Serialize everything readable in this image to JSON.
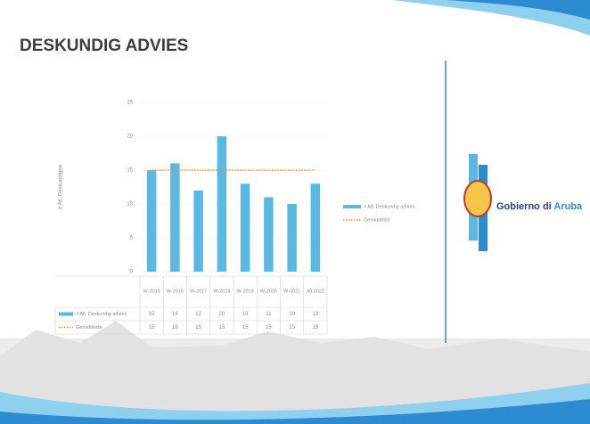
{
  "chart_data": {
    "type": "bar",
    "title": "DESKUNDIG ADVIES",
    "y_label": "# Afl. Deskundigen",
    "categories": [
      "W-2015",
      "W-2016",
      "W-2017",
      "W-2018",
      "W-2019",
      "W-2020",
      "W-2021",
      "30-2022"
    ],
    "series": [
      {
        "name": "# Afl. Deskundig advies",
        "color": "#5bb8e0",
        "values": [
          15,
          16,
          12,
          20,
          13,
          11,
          10,
          13
        ]
      },
      {
        "name": "Gemiddelde",
        "color": "#f08a3a",
        "type": "line",
        "values": [
          15,
          15,
          15,
          15,
          15,
          15,
          15,
          15
        ]
      }
    ],
    "ylim": [
      0,
      25
    ],
    "yticks": [
      0,
      5,
      10,
      15,
      20,
      25
    ],
    "grid": true,
    "legend": "right",
    "data_table": true
  },
  "logo": {
    "text": "Gobierno di",
    "highlight": "Aruba"
  }
}
